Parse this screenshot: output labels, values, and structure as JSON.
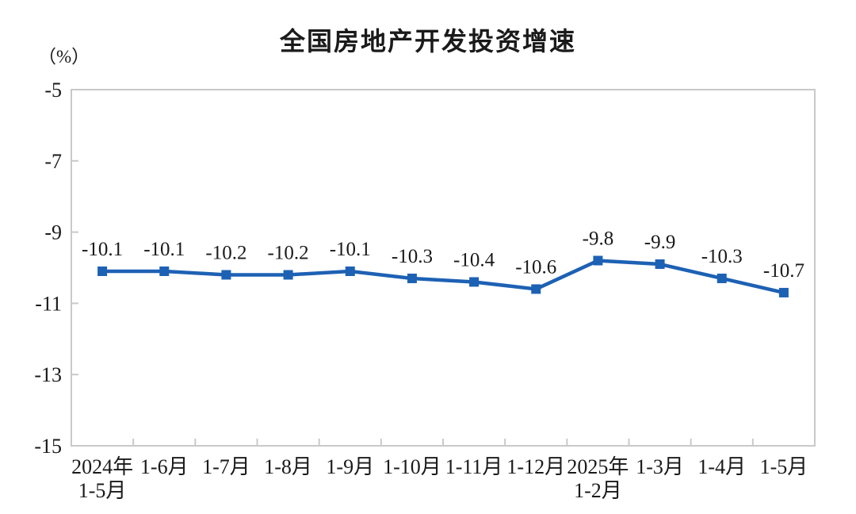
{
  "page": {
    "background_color": "#ffffff"
  },
  "chart": {
    "title": "全国房地产开发投资增速",
    "unit_label": "（%）"
  },
  "chart_data": {
    "type": "line",
    "title": "全国房地产开发投资增速",
    "ylabel": "（%）",
    "categories": [
      "2024年\n1-5月",
      "1-6月",
      "1-7月",
      "1-8月",
      "1-9月",
      "1-10月",
      "1-11月",
      "1-12月",
      "2025年\n1-2月",
      "1-3月",
      "1-4月",
      "1-5月"
    ],
    "values": [
      -10.1,
      -10.1,
      -10.2,
      -10.2,
      -10.1,
      -10.3,
      -10.4,
      -10.6,
      -9.8,
      -9.9,
      -10.3,
      -10.7
    ],
    "data_labels": [
      "-10.1",
      "-10.1",
      "-10.2",
      "-10.2",
      "-10.1",
      "-10.3",
      "-10.4",
      "-10.6",
      "-9.8",
      "-9.9",
      "-10.3",
      "-10.7"
    ],
    "ylim": [
      -15,
      -5
    ],
    "yticks": [
      "-5",
      "-7",
      "-9",
      "-11",
      "-13",
      "-15"
    ],
    "ytick_values": [
      -5,
      -7,
      -9,
      -11,
      -13,
      -15
    ],
    "grid": false,
    "legend": "none",
    "line_color": "#1d61b4",
    "marker": "square",
    "marker_color": "#1d61b4",
    "axis_border_color": "#c9c9c9",
    "text_color": "#1a1a1a"
  }
}
